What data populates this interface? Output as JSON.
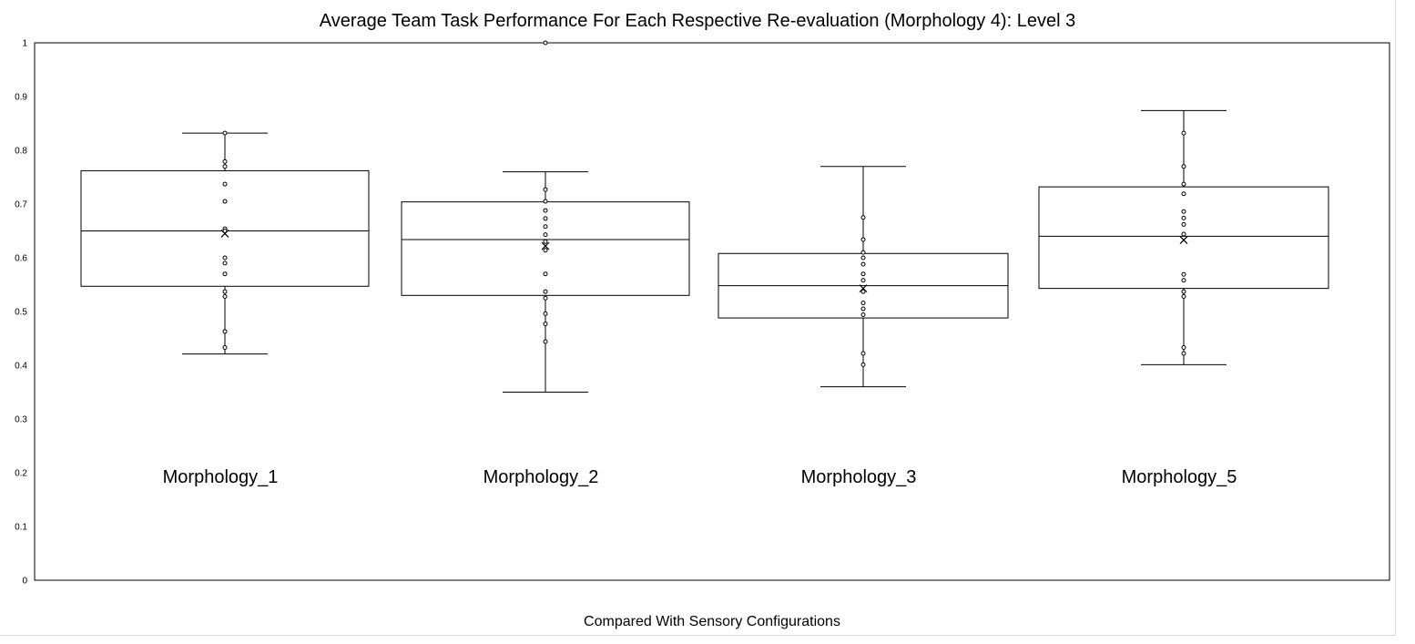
{
  "chart_data": {
    "type": "box",
    "title": "Average Team Task Performance For Each Respective Re-evaluation (Morphology 4):  Level 3",
    "xlabel": "Compared With Sensory Configurations",
    "ylabel": "",
    "ylim": [
      0,
      1
    ],
    "yticks": [
      "0",
      "0.1",
      "0.2",
      "0.3",
      "0.4",
      "0.5",
      "0.6",
      "0.7",
      "0.8",
      "0.9",
      "1"
    ],
    "grid": false,
    "legend": "none",
    "categories": [
      "Morphology_1",
      "Morphology_2",
      "Morphology_3",
      "Morphology_5"
    ],
    "boxes": [
      {
        "name": "Morphology_1",
        "whisker_low": 0.421,
        "q1": 0.547,
        "median": 0.65,
        "q3": 0.762,
        "whisker_high": 0.832,
        "mean": 0.645,
        "points": [
          0.832,
          0.779,
          0.77,
          0.737,
          0.705,
          0.654,
          0.65,
          0.6,
          0.59,
          0.57,
          0.537,
          0.528,
          0.463,
          0.433
        ]
      },
      {
        "name": "Morphology_2",
        "whisker_low": 0.35,
        "q1": 0.53,
        "median": 0.634,
        "q3": 0.704,
        "whisker_high": 0.76,
        "mean": 0.622,
        "points": [
          1.0,
          0.727,
          0.705,
          0.688,
          0.673,
          0.658,
          0.643,
          0.63,
          0.614,
          0.57,
          0.537,
          0.525,
          0.496,
          0.477,
          0.444
        ]
      },
      {
        "name": "Morphology_3",
        "whisker_low": 0.36,
        "q1": 0.488,
        "median": 0.548,
        "q3": 0.608,
        "whisker_high": 0.77,
        "mean": 0.543,
        "points": [
          0.675,
          0.634,
          0.61,
          0.6,
          0.588,
          0.57,
          0.558,
          0.537,
          0.516,
          0.505,
          0.494,
          0.422,
          0.401
        ]
      },
      {
        "name": "Morphology_5",
        "whisker_low": 0.401,
        "q1": 0.543,
        "median": 0.64,
        "q3": 0.732,
        "whisker_high": 0.874,
        "mean": 0.633,
        "points": [
          0.832,
          0.77,
          0.737,
          0.719,
          0.686,
          0.674,
          0.662,
          0.644,
          0.569,
          0.558,
          0.537,
          0.528,
          0.433,
          0.422
        ]
      }
    ]
  }
}
